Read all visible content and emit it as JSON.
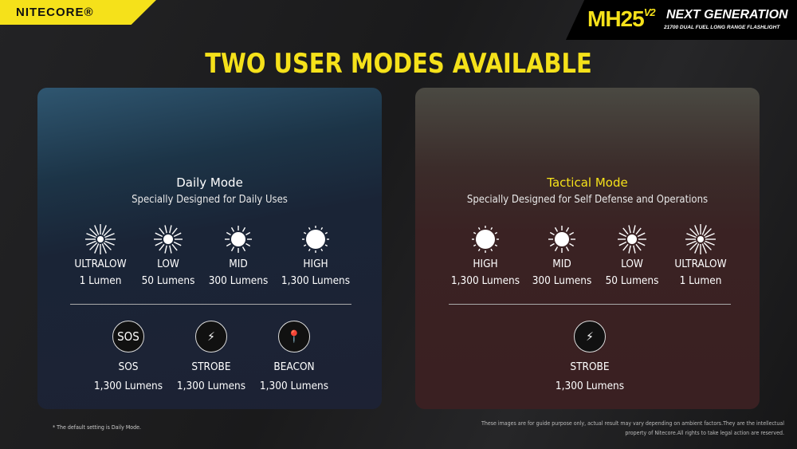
{
  "brand": "NITECORE®",
  "product": {
    "model": "MH25",
    "version": "V2",
    "headline": "NEXT GENERATION",
    "tagline": "21700 DUAL FUEL LONG RANGE FLASHLIGHT"
  },
  "title": "TWO USER MODES AVAILABLE",
  "accent": "#f5e11a",
  "daily": {
    "name": "Daily Mode",
    "subtitle": "Specially Designed for Daily Uses",
    "levels": [
      {
        "icon": "sun-ultralow-icon",
        "level": 1,
        "label": "ULTRALOW",
        "value": "1 Lumen"
      },
      {
        "icon": "sun-low-icon",
        "level": 2,
        "label": "LOW",
        "value": "50 Lumens"
      },
      {
        "icon": "sun-mid-icon",
        "level": 3,
        "label": "MID",
        "value": "300 Lumens"
      },
      {
        "icon": "sun-high-icon",
        "level": 4,
        "label": "HIGH",
        "value": "1,300 Lumens"
      }
    ],
    "specials": [
      {
        "icon": "sos-icon",
        "glyph": "SOS",
        "label": "SOS",
        "value": "1,300 Lumens"
      },
      {
        "icon": "lightning-icon",
        "glyph": "⚡",
        "label": "STROBE",
        "value": "1,300 Lumens"
      },
      {
        "icon": "location-pin-icon",
        "glyph": "📍",
        "label": "BEACON",
        "value": "1,300 Lumens"
      }
    ]
  },
  "tactical": {
    "name": "Tactical Mode",
    "subtitle": "Specially Designed for Self Defense and Operations",
    "levels": [
      {
        "icon": "sun-high-icon",
        "level": 4,
        "label": "HIGH",
        "value": "1,300 Lumens"
      },
      {
        "icon": "sun-mid-icon",
        "level": 3,
        "label": "MID",
        "value": "300 Lumens"
      },
      {
        "icon": "sun-low-icon",
        "level": 2,
        "label": "LOW",
        "value": "50 Lumens"
      },
      {
        "icon": "sun-ultralow-icon",
        "level": 1,
        "label": "ULTRALOW",
        "value": "1 Lumen"
      }
    ],
    "specials": [
      {
        "icon": "lightning-icon",
        "glyph": "⚡",
        "label": "STROBE",
        "value": "1,300 Lumens"
      }
    ]
  },
  "footnote": "* The default setting is Daily Mode.",
  "disclaimer": "These images are for guide purpose only, actual result may vary depending on ambient factors.They are the intellectual property of Nitecore.All rights to take legal action are reserved."
}
